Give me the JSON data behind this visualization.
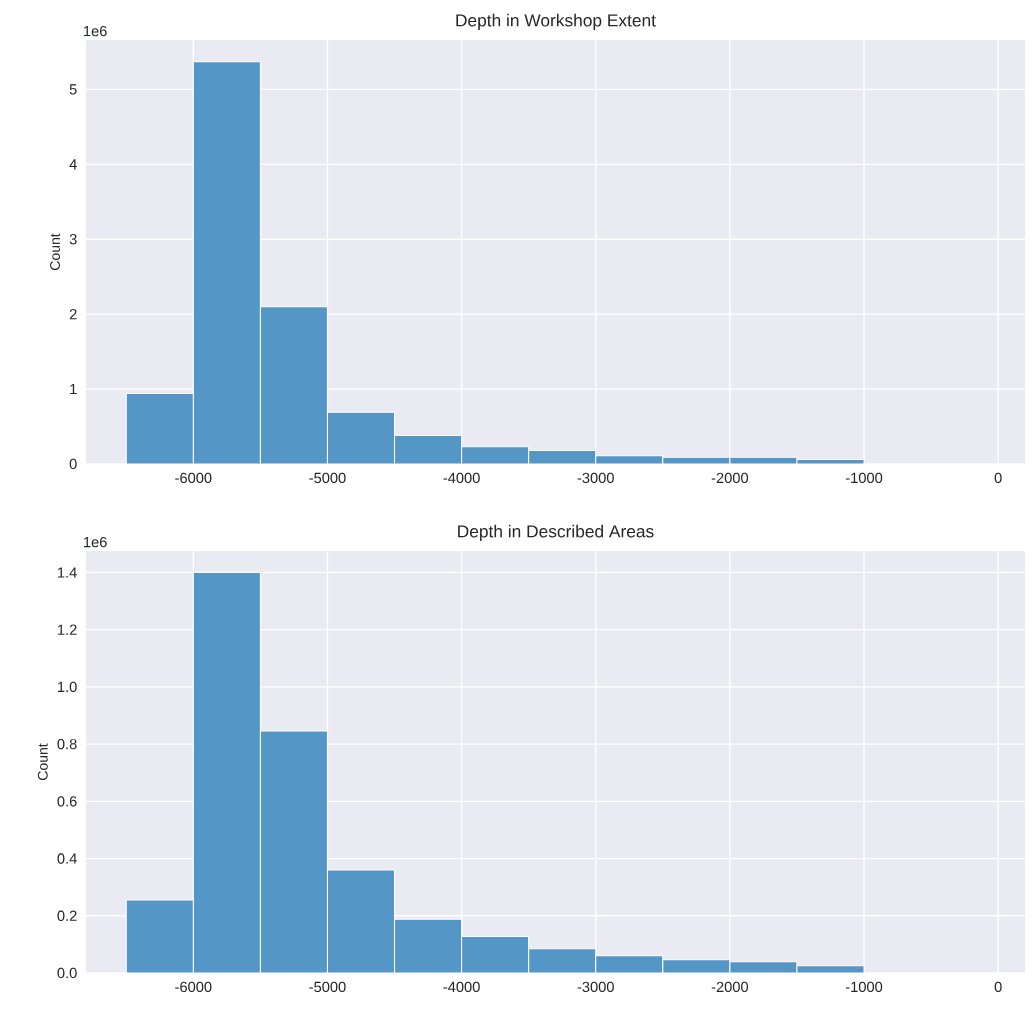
{
  "chart_data": [
    {
      "type": "histogram",
      "title": "Depth in Workshop Extent",
      "ylabel": "Count",
      "annotations": [
        "1e6"
      ],
      "color": "#5496c6",
      "bins": [
        -6500,
        -6000,
        -5500,
        -5000,
        -4500,
        -4000,
        -3500,
        -3000,
        -2500,
        -2000,
        -1500,
        -1000
      ],
      "values": [
        0.94,
        5.37,
        2.1,
        0.69,
        0.38,
        0.23,
        0.18,
        0.11,
        0.09,
        0.09,
        0.06
      ],
      "xlim": [
        -6800,
        200
      ],
      "xticks": [
        -6000,
        -5000,
        -4000,
        -3000,
        -2000,
        -1000,
        0
      ],
      "ylim": [
        0,
        5.66
      ],
      "yticks": [
        0,
        1,
        2,
        3,
        4,
        5
      ],
      "grid": true
    },
    {
      "type": "histogram",
      "title": "Depth in Described Areas",
      "ylabel": "Count",
      "annotations": [
        "1e6"
      ],
      "color": "#5496c6",
      "bins": [
        -6500,
        -6000,
        -5500,
        -5000,
        -4500,
        -4000,
        -3500,
        -3000,
        -2500,
        -2000,
        -1500,
        -1000
      ],
      "values": [
        0.255,
        1.4,
        0.846,
        0.36,
        0.188,
        0.128,
        0.085,
        0.06,
        0.046,
        0.039,
        0.025
      ],
      "xlim": [
        -6800,
        200
      ],
      "xticks": [
        -6000,
        -5000,
        -4000,
        -3000,
        -2000,
        -1000,
        0
      ],
      "ylim": [
        0,
        1.475
      ],
      "yticks": [
        {
          "value": 0,
          "label": "0.0"
        },
        {
          "value": 0.2,
          "label": "0.2"
        },
        {
          "value": 0.4,
          "label": "0.4"
        },
        {
          "value": 0.6,
          "label": "0.6"
        },
        {
          "value": 0.8,
          "label": "0.8"
        },
        {
          "value": 1.0,
          "label": "1.0"
        },
        {
          "value": 1.2,
          "label": "1.2"
        },
        {
          "value": 1.4,
          "label": "1.4"
        }
      ],
      "grid": true
    }
  ]
}
